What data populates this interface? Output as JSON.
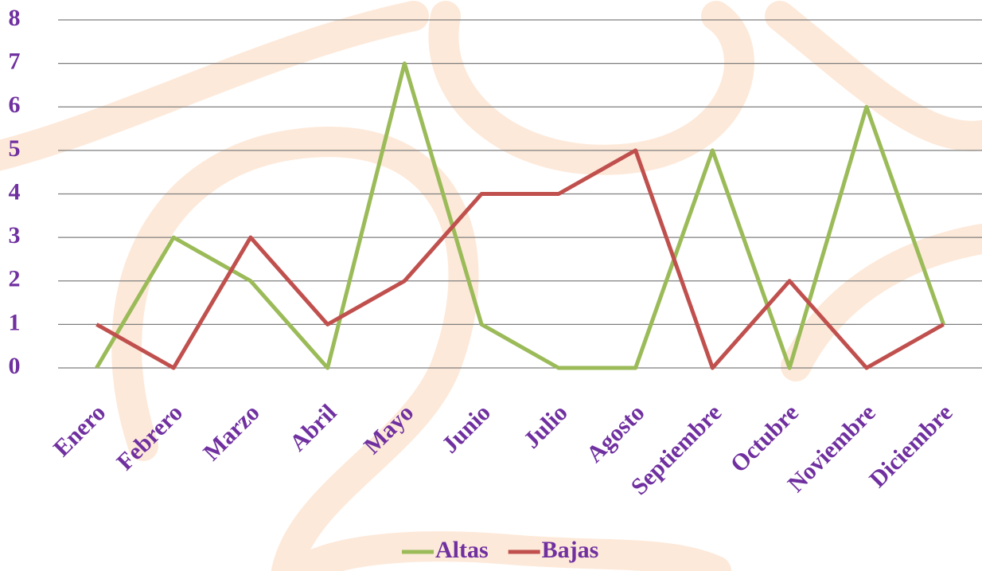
{
  "chart_data": {
    "type": "line",
    "categories": [
      "Enero",
      "Febrero",
      "Marzo",
      "Abril",
      "Mayo",
      "Junio",
      "Julio",
      "Agosto",
      "Septiembre",
      "Octubre",
      "Noviembre",
      "Diciembre"
    ],
    "series": [
      {
        "name": "Altas",
        "color": "#9bbb59",
        "values": [
          0,
          3,
          2,
          0,
          7,
          1,
          0,
          0,
          5,
          0,
          6,
          1
        ]
      },
      {
        "name": "Bajas",
        "color": "#c0504d",
        "values": [
          1,
          0,
          3,
          1,
          2,
          4,
          4,
          5,
          0,
          2,
          0,
          1
        ]
      }
    ],
    "ylim": [
      0,
      8
    ],
    "yticks": [
      0,
      1,
      2,
      3,
      4,
      5,
      6,
      7,
      8
    ],
    "grid": true,
    "legend": "bottom"
  }
}
